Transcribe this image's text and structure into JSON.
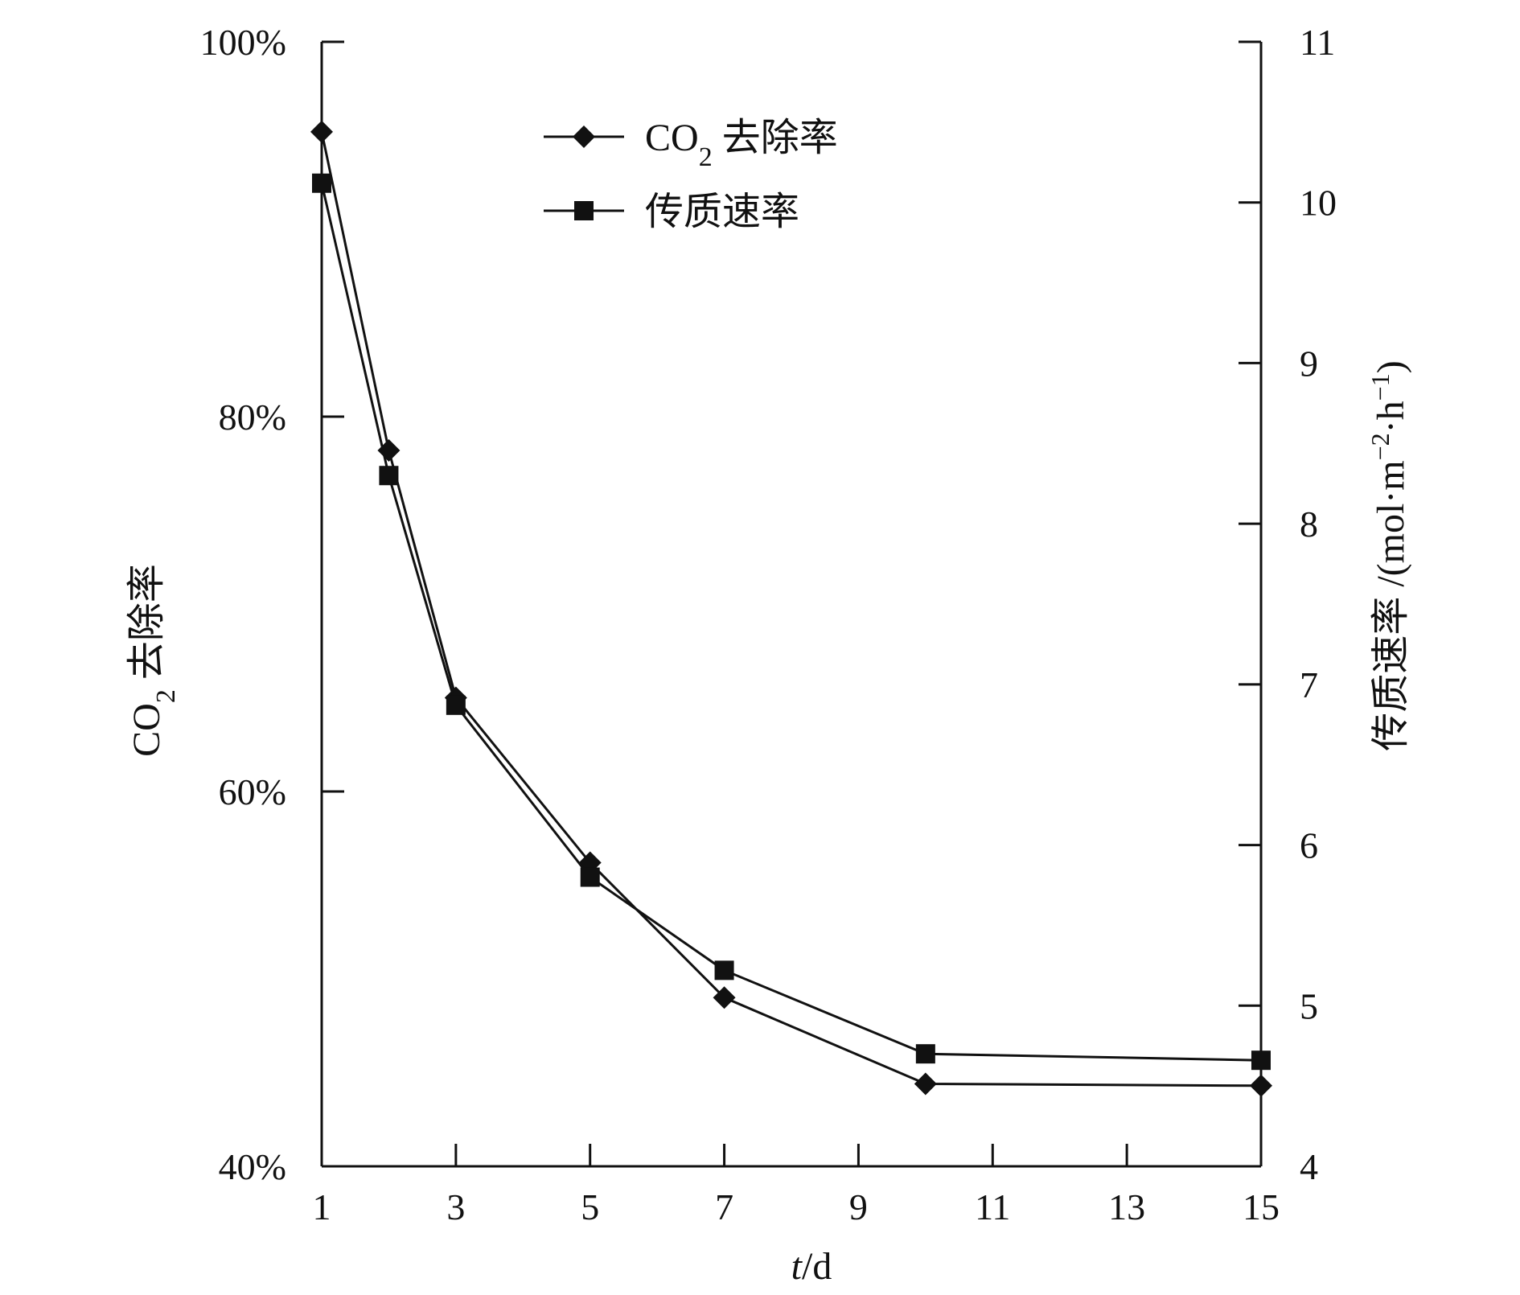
{
  "chart_data": {
    "type": "line",
    "x_label_var": "t",
    "x_label_unit": "/d",
    "y_left_label_main": "CO",
    "y_left_label_sub": "2",
    "y_left_label_rest": " 去除率",
    "y_right_label": "传质速率 /(mol·m",
    "y_right_label_sup1": "−2",
    "y_right_label_mid": "·h",
    "y_right_label_sup2": "−1",
    "y_right_label_end": ")",
    "x_ticks": [
      1,
      3,
      5,
      7,
      9,
      11,
      13,
      15
    ],
    "x_range": [
      1,
      15
    ],
    "y_left_ticks": [
      "40%",
      "60%",
      "80%",
      "100%"
    ],
    "y_left_range": [
      40,
      100
    ],
    "y_right_ticks": [
      "4",
      "5",
      "6",
      "7",
      "8",
      "9",
      "10",
      "11"
    ],
    "y_right_range": [
      4,
      11
    ],
    "grid": false,
    "legend_position": "top-center",
    "series": [
      {
        "name_main": "CO",
        "name_sub": "2",
        "name_rest": " 去除率",
        "marker": "diamond",
        "axis": "left",
        "x": [
          1,
          2,
          3,
          5,
          7,
          10,
          15
        ],
        "y": [
          95.2,
          78.2,
          65.0,
          56.2,
          49.0,
          44.4,
          44.3
        ]
      },
      {
        "name": "传质速率",
        "marker": "square",
        "axis": "right",
        "x": [
          1,
          2,
          3,
          5,
          7,
          10,
          15
        ],
        "y": [
          10.12,
          8.3,
          6.87,
          5.8,
          5.22,
          4.7,
          4.66
        ]
      }
    ]
  }
}
